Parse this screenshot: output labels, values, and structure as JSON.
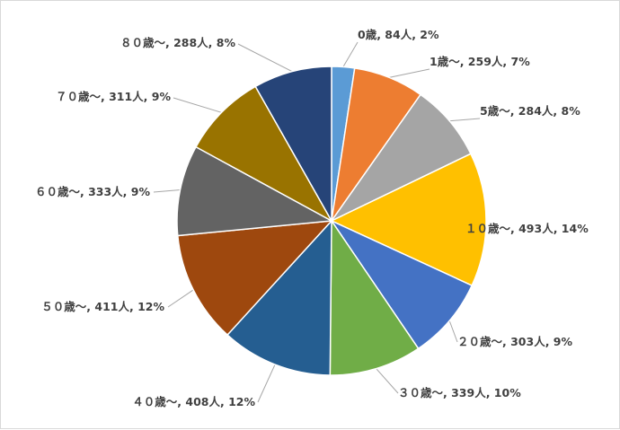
{
  "chart_data": {
    "type": "pie",
    "title": "",
    "legend": "none",
    "start_angle_deg": 0,
    "direction": "clockwise",
    "slices": [
      {
        "label": "0歳",
        "count": 84,
        "count_unit": "人",
        "percent": 2,
        "color": "#5B9BD5",
        "text": "0歳, 84人, 2%"
      },
      {
        "label": "1歳～",
        "count": 259,
        "count_unit": "人",
        "percent": 7,
        "color": "#ED7D31",
        "text": "1歳～, 259人, 7%"
      },
      {
        "label": "5歳～",
        "count": 284,
        "count_unit": "人",
        "percent": 8,
        "color": "#A5A5A5",
        "text": "5歳～, 284人, 8%"
      },
      {
        "label": "１０歳～",
        "count": 493,
        "count_unit": "人",
        "percent": 14,
        "color": "#FFC000",
        "text": "１０歳～, 493人, 14%"
      },
      {
        "label": "２０歳～",
        "count": 303,
        "count_unit": "人",
        "percent": 9,
        "color": "#4472C4",
        "text": "２０歳～, 303人, 9%"
      },
      {
        "label": "３０歳～",
        "count": 339,
        "count_unit": "人",
        "percent": 10,
        "color": "#70AD47",
        "text": "３０歳～, 339人, 10%"
      },
      {
        "label": "４０歳～",
        "count": 408,
        "count_unit": "人",
        "percent": 12,
        "color": "#255E91",
        "text": "４０歳～, 408人, 12%"
      },
      {
        "label": "５０歳～",
        "count": 411,
        "count_unit": "人",
        "percent": 12,
        "color": "#9E480E",
        "text": "５０歳～, 411人, 12%"
      },
      {
        "label": "６０歳～",
        "count": 333,
        "count_unit": "人",
        "percent": 9,
        "color": "#636363",
        "text": "６０歳～, 333人, 9%"
      },
      {
        "label": "７０歳～",
        "count": 311,
        "count_unit": "人",
        "percent": 9,
        "color": "#997300",
        "text": "７０歳～, 311人, 9%"
      },
      {
        "label": "８０歳～",
        "count": 288,
        "count_unit": "人",
        "percent": 8,
        "color": "#264478",
        "text": "８０歳～, 288人, 8%"
      }
    ]
  }
}
